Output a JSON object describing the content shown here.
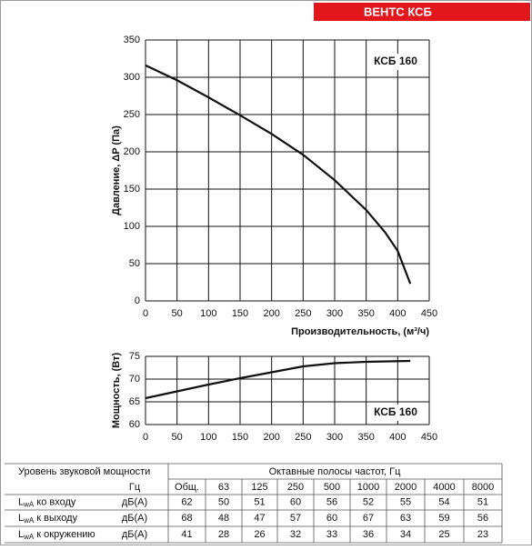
{
  "brand": "ВЕНТС КСБ",
  "chart_data": [
    {
      "type": "line",
      "annotation": "КСБ 160",
      "x_label": "Производительность, (м³/ч)",
      "y_label": "Давление, ΔP (Па)",
      "x": [
        0,
        50,
        100,
        150,
        200,
        250,
        300,
        350,
        380,
        400,
        420
      ],
      "values": [
        316,
        296,
        273,
        249,
        224,
        196,
        162,
        122,
        92,
        67,
        23
      ],
      "color": "#111111",
      "xlim": [
        0,
        450
      ],
      "xticks": [
        0,
        50,
        100,
        150,
        200,
        250,
        300,
        350,
        400,
        450
      ],
      "ylim": [
        0,
        350
      ],
      "yticks": [
        0,
        50,
        100,
        150,
        200,
        250,
        300,
        350
      ],
      "grid": true
    },
    {
      "type": "line",
      "annotation": "КСБ 160",
      "y_label": "Мощность, (Вт)",
      "x": [
        0,
        50,
        100,
        150,
        200,
        250,
        300,
        350,
        420
      ],
      "values": [
        65.8,
        67.3,
        68.8,
        70.2,
        71.5,
        72.8,
        73.5,
        73.8,
        74.0
      ],
      "color": "#111111",
      "xlim": [
        0,
        450
      ],
      "xticks": [
        0,
        50,
        100,
        150,
        200,
        250,
        300,
        350,
        400,
        450
      ],
      "ylim": [
        60,
        75
      ],
      "yticks": [
        60,
        65,
        70,
        75
      ],
      "grid": true
    }
  ],
  "table": {
    "title": "Уровень звуковой мощности",
    "bands_title": "Октавные полосы частот, Гц",
    "columns": [
      "Гц",
      "Общ.",
      "63",
      "125",
      "250",
      "500",
      "1000",
      "2000",
      "4000",
      "8000"
    ],
    "rows": [
      {
        "symbol": "L",
        "subscript": "wA",
        "text": " ко входу",
        "unit": "дБ(А)",
        "values": [
          62,
          50,
          51,
          60,
          56,
          52,
          55,
          54,
          51
        ]
      },
      {
        "symbol": "L",
        "subscript": "wA",
        "text": " к выходу",
        "unit": "дБ(А)",
        "values": [
          68,
          48,
          47,
          57,
          60,
          67,
          63,
          59,
          56
        ]
      },
      {
        "symbol": "L",
        "subscript": "wA",
        "text": " к окружению",
        "unit": "дБ(А)",
        "values": [
          41,
          28,
          26,
          32,
          33,
          36,
          34,
          25,
          23
        ]
      }
    ]
  }
}
